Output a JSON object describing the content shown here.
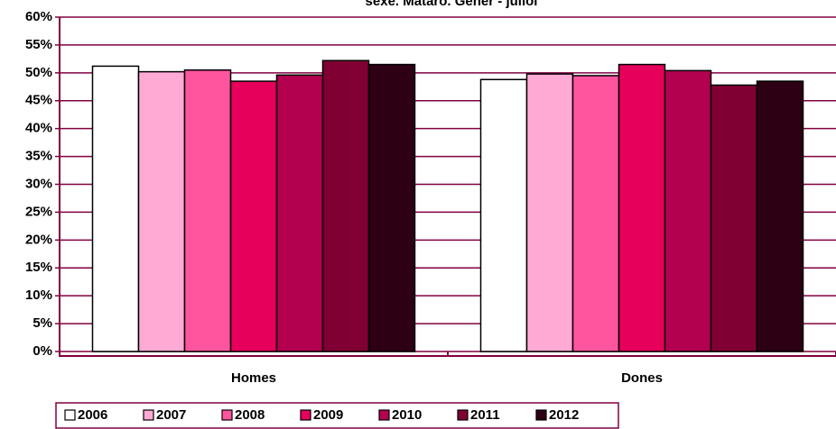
{
  "chart_data": {
    "type": "bar",
    "title": "sexe. Mataró. Gener - juliol",
    "categories": [
      "Homes",
      "Dones"
    ],
    "series": [
      {
        "name": "2006",
        "color": "#ffffff",
        "values": [
          51.2,
          48.8
        ]
      },
      {
        "name": "2007",
        "color": "#ffaad4",
        "values": [
          50.2,
          49.8
        ]
      },
      {
        "name": "2008",
        "color": "#ff559f",
        "values": [
          50.5,
          49.5
        ]
      },
      {
        "name": "2009",
        "color": "#e6005c",
        "values": [
          48.5,
          51.5
        ]
      },
      {
        "name": "2010",
        "color": "#b3004f",
        "values": [
          49.6,
          50.4
        ]
      },
      {
        "name": "2011",
        "color": "#800033",
        "values": [
          52.2,
          47.8
        ]
      },
      {
        "name": "2012",
        "color": "#2d0014",
        "values": [
          51.5,
          48.5
        ]
      }
    ],
    "ylim": [
      0,
      60
    ],
    "yticks": [
      {
        "value": 0,
        "label": "0%"
      },
      {
        "value": 5,
        "label": "5%"
      },
      {
        "value": 10,
        "label": "10%"
      },
      {
        "value": 15,
        "label": "15%"
      },
      {
        "value": 20,
        "label": "20%"
      },
      {
        "value": 25,
        "label": "25%"
      },
      {
        "value": 30,
        "label": "30%"
      },
      {
        "value": 35,
        "label": "35%"
      },
      {
        "value": 40,
        "label": "40%"
      },
      {
        "value": 45,
        "label": "45%"
      },
      {
        "value": 50,
        "label": "50%"
      },
      {
        "value": 55,
        "label": "55%"
      },
      {
        "value": 60,
        "label": "60%"
      }
    ],
    "grid": true
  }
}
